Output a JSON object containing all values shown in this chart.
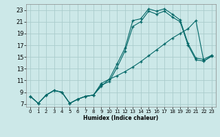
{
  "title": "",
  "xlabel": "Humidex (Indice chaleur)",
  "background_color": "#cce8e8",
  "grid_color": "#aacccc",
  "line_color": "#006666",
  "xlim": [
    -0.5,
    23.5
  ],
  "ylim": [
    6.5,
    24.0
  ],
  "xticks": [
    0,
    1,
    2,
    3,
    4,
    5,
    6,
    7,
    8,
    9,
    10,
    11,
    12,
    13,
    14,
    15,
    16,
    17,
    18,
    19,
    20,
    21,
    22,
    23
  ],
  "yticks": [
    7,
    9,
    11,
    13,
    15,
    17,
    19,
    21,
    23
  ],
  "series1_x": [
    0,
    1,
    2,
    3,
    4,
    5,
    6,
    7,
    8,
    9,
    10,
    11,
    12,
    13,
    14,
    15,
    16,
    17,
    18,
    19,
    20,
    21,
    22,
    23
  ],
  "series1_y": [
    8.3,
    7.1,
    8.5,
    9.3,
    9.0,
    7.1,
    7.8,
    8.3,
    8.5,
    10.5,
    11.2,
    13.8,
    16.5,
    21.2,
    21.5,
    23.2,
    22.8,
    23.2,
    22.3,
    21.3,
    17.3,
    14.8,
    14.6,
    15.3
  ],
  "series2_x": [
    0,
    1,
    2,
    3,
    4,
    5,
    6,
    7,
    8,
    9,
    10,
    11,
    12,
    13,
    14,
    15,
    16,
    17,
    18,
    19,
    20,
    21,
    22,
    23
  ],
  "series2_y": [
    8.3,
    7.1,
    8.5,
    9.3,
    9.0,
    7.1,
    7.8,
    8.3,
    8.5,
    10.2,
    10.8,
    13.2,
    16.0,
    20.2,
    21.0,
    22.8,
    22.3,
    22.8,
    21.8,
    21.0,
    17.0,
    14.5,
    14.3,
    15.1
  ],
  "series3_x": [
    0,
    1,
    2,
    3,
    4,
    5,
    6,
    7,
    8,
    9,
    10,
    11,
    12,
    13,
    14,
    15,
    16,
    17,
    18,
    19,
    20,
    21,
    22,
    23
  ],
  "series3_y": [
    8.3,
    7.1,
    8.5,
    9.3,
    9.0,
    7.1,
    7.8,
    8.3,
    8.5,
    10.0,
    11.2,
    11.8,
    12.5,
    13.3,
    14.2,
    15.2,
    16.2,
    17.2,
    18.2,
    19.0,
    19.8,
    21.2,
    14.3,
    15.2
  ]
}
